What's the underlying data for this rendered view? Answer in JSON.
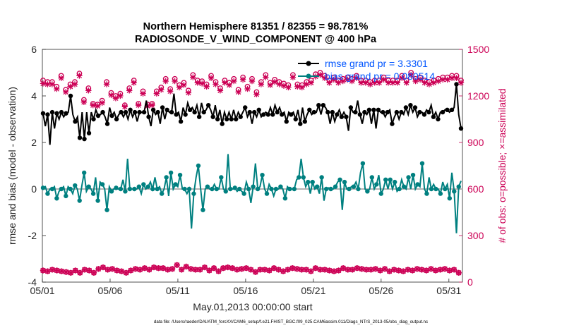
{
  "chart_data": {
    "type": "line",
    "title_line1": "Northern Hemisphere 81351 / 82355 = 98.781%",
    "title_line2": "RADIOSONDE_V_WIND_COMPONENT @ 400 hPa",
    "xlabel": "May.01,2013 00:00:00 start",
    "ylabel_left": "rmse and bias (model - observation)",
    "ylabel_right": "# of obs: o=possible; ×=assimilated",
    "footer": "data file: /Users/raeder/DAI/ATM_forcXX/CAM6_setup/f.e21.FHIST_BGC.f09_025.CAM6assim.011/Diags_NTrS_2013-05/obs_diag_output.nc",
    "x_ticks": [
      "05/01",
      "05/06",
      "05/11",
      "05/16",
      "05/21",
      "05/26",
      "05/31"
    ],
    "xlim": [
      0,
      31
    ],
    "ylim_left": [
      -4,
      6
    ],
    "yticks_left": [
      "-4",
      "-2",
      "0",
      "2",
      "4",
      "6"
    ],
    "ylim_right": [
      0,
      1500
    ],
    "yticks_right": [
      "0",
      "300",
      "600",
      "900",
      "1200",
      "1500"
    ],
    "colors": {
      "rmse": "#000000",
      "bias": "#008080",
      "obs": "#cc0055",
      "zero": "#b3b3b3"
    },
    "series": [
      {
        "name": "rmse",
        "legend": "rmse grand pr = 3.3301",
        "axis": "left",
        "values": [
          3.25,
          2.7,
          3.2,
          1.9,
          3.3,
          2.6,
          3.25,
          3.0,
          3.3,
          3.1,
          3.25,
          3.3,
          4.0,
          3.2,
          2.9,
          3.1,
          2.2,
          3.3,
          2.15,
          3.3,
          2.4,
          3.3,
          3.0,
          3.4,
          3.15,
          3.2,
          3.3,
          3.1,
          2.8,
          3.5,
          3.15,
          3.3,
          3.0,
          3.2,
          3.3,
          3.1,
          3.3,
          3.0,
          3.4,
          3.1,
          3.3,
          2.9,
          3.3,
          3.3,
          3.3,
          3.8,
          3.1,
          2.7,
          3.4,
          3.2,
          3.3,
          2.8,
          3.5,
          3.0,
          3.4,
          3.3,
          3.3,
          4.1,
          3.2,
          3.3,
          2.9,
          3.5,
          3.2,
          3.7,
          3.4,
          3.5,
          3.3,
          3.6,
          3.1,
          3.7,
          3.3,
          3.4,
          3.6,
          3.4,
          3.1,
          3.6,
          3.0,
          3.4,
          2.8,
          3.3,
          3.0,
          3.3,
          3.0,
          3.4,
          3.0,
          3.3,
          3.1,
          3.3,
          3.5,
          3.1,
          3.3,
          2.8,
          3.3,
          3.1,
          3.4,
          3.1,
          3.2,
          3.3,
          3.2,
          3.5,
          3.2,
          3.6,
          3.3,
          3.5,
          3.2,
          3.3,
          2.9,
          3.3,
          3.2,
          3.3,
          3.0,
          3.4,
          2.8,
          3.5,
          2.9,
          3.2,
          3.4,
          3.2,
          3.3,
          3.3,
          3.6,
          3.2,
          3.6,
          3.5,
          3.3,
          2.8,
          3.3,
          2.9,
          3.2,
          3.4,
          3.1,
          3.3,
          3.1,
          2.5,
          3.5,
          3.3,
          3.3,
          3.8,
          3.2,
          2.8,
          3.3,
          3.2,
          3.4,
          2.8,
          3.4,
          2.6,
          3.4,
          3.3,
          3.3,
          3.1,
          3.3,
          3.4,
          2.8,
          3.1,
          3.3,
          3.0,
          3.3,
          3.2,
          3.5,
          3.2,
          3.6,
          3.3,
          3.5,
          3.1,
          3.3,
          3.3,
          3.2,
          3.4,
          3.3,
          3.6,
          3.1,
          3.3,
          3.0,
          3.3,
          3.3,
          3.4,
          3.4,
          3.3,
          3.4,
          3.5,
          4.5,
          3.2,
          2.6
        ]
      },
      {
        "name": "bias",
        "legend": "bias grand pr = 0.080514",
        "axis": "left",
        "values": [
          0.05,
          0.1,
          -0.2,
          0.0,
          0.0,
          0.1,
          -0.4,
          -0.1,
          0.0,
          0.1,
          -0.3,
          0.1,
          0.0,
          -0.2,
          0.15,
          0.0,
          -0.5,
          0.15,
          0.7,
          -0.1,
          0.1,
          0.0,
          -0.2,
          0.5,
          -0.5,
          0.3,
          0.2,
          0.0,
          -0.9,
          0.1,
          -0.1,
          0.0,
          0.05,
          0.0,
          0.0,
          0.4,
          -0.1,
          1.3,
          0.0,
          0.0,
          0.0,
          0.0,
          0.1,
          -0.2,
          0.2,
          0.0,
          0.1,
          0.3,
          0.0,
          0.5,
          0.0,
          0.1,
          -0.2,
          0.0,
          0.5,
          -0.3,
          0.7,
          0.0,
          0.2,
          0.1,
          0.6,
          0.0,
          0.0,
          -0.2,
          0.0,
          -1.7,
          -0.2,
          0.5,
          1.0,
          0.0,
          -0.9,
          0.0,
          0.1,
          0.0,
          0.0,
          0.2,
          0.0,
          0.0,
          0.5,
          0.0,
          -0.1,
          1.5,
          0.0,
          0.0,
          0.05,
          -0.1,
          0.0,
          -0.1,
          -0.2,
          0.3,
          0.0,
          -0.6,
          0.1,
          1.1,
          0.0,
          0.1,
          0.6,
          0.0,
          -0.2,
          0.2,
          0.0,
          -0.3,
          0.0,
          0.0,
          0.1,
          0.0,
          -0.4,
          0.1,
          0.0,
          0.0,
          0.0,
          0.4,
          0.5,
          1.3,
          0.5,
          0.1,
          0.3,
          -0.2,
          0.3,
          0.0,
          0.1,
          -0.2,
          0.5,
          -0.5,
          0.0,
          0.05,
          0.0,
          0.0,
          0.1,
          0.3,
          0.4,
          -0.9,
          0.3,
          0.0,
          0.0,
          0.1,
          0.1,
          0.3,
          0.0,
          0.7,
          1.1,
          0.0,
          -0.1,
          0.0,
          0.5,
          0.0,
          0.2,
          0.6,
          -0.2,
          0.0,
          0.4,
          0.0,
          0.4,
          0.0,
          0.3,
          -0.1,
          0.0,
          0.4,
          0.1,
          0.0,
          0.5,
          0.0,
          0.6,
          0.0,
          0.2,
          0.1,
          1.1,
          0.0,
          -0.2,
          0.5,
          0.0,
          0.2,
          0.0,
          0.0,
          -0.2,
          0.3,
          0.0,
          0.2,
          -0.4,
          0.7,
          -0.1,
          -1.9,
          0.1,
          0.35
        ]
      },
      {
        "name": "obs_possible",
        "axis": "right",
        "values": [
          1300,
          1275,
          1290,
          1150,
          1290,
          1265,
          1260,
          1300,
          1330,
          1230,
          1240,
          1280,
          1275,
          1160,
          1290,
          1200,
          1345,
          1205,
          1175,
          1295,
          1250,
          1275,
          1150,
          1240,
          1145,
          1290,
          1170,
          1145,
          1290,
          1180,
          1220,
          1265,
          1200,
          1225,
          1215,
          1270,
          1140,
          1230,
          1250,
          1165,
          1300,
          1160,
          1150,
          1200,
          1230,
          1235,
          1145,
          1280,
          1150,
          1225,
          1230,
          1165,
          1255,
          1180,
          1310,
          1260,
          1245,
          1175,
          1310,
          1150,
          1270,
          1175,
          1285,
          1200,
          1235,
          1300,
          1335,
          1230,
          1300,
          1240,
          1295,
          1285,
          1275,
          1230,
          1330,
          1265,
          1290,
          1240,
          1250,
          1275,
          1300,
          1280,
          1285,
          1300,
          1310,
          1270,
          1240,
          1285,
          1320,
          1275,
          1260,
          1300,
          1310,
          1270,
          1225,
          1330,
          1290,
          1300,
          1335,
          1280,
          1285,
          1275,
          1305,
          1305,
          1290,
          1315,
          1280,
          1290,
          1270,
          1305,
          1335,
          1300,
          1275,
          1305,
          1270,
          1350,
          1290,
          1290,
          1300,
          1270,
          1340,
          1270,
          1350,
          1300,
          1330,
          1300,
          1300,
          1320,
          1320,
          1270,
          1300,
          1335,
          1310,
          1300,
          1320,
          1300,
          1310,
          1290,
          1330,
          1350,
          1300,
          1330,
          1300,
          1300,
          1290,
          1320,
          1300,
          1290,
          1300,
          1350,
          1320,
          1300,
          1300,
          1320,
          1300,
          1300,
          1300,
          1330,
          1330,
          1300,
          1300,
          1320,
          1350,
          1340,
          1310,
          1300,
          1320,
          1300,
          1300,
          1310,
          1290,
          1330,
          1300,
          1320,
          1310,
          1300,
          1320,
          1310,
          1320,
          1300,
          1330,
          1310,
          1330,
          1290,
          1300
        ],
        "marker": "o"
      },
      {
        "name": "obs_assimilated",
        "axis": "right",
        "values": [
          1280,
          1260,
          1275,
          1140,
          1275,
          1250,
          1245,
          1285,
          1315,
          1215,
          1225,
          1265,
          1260,
          1150,
          1275,
          1185,
          1330,
          1190,
          1160,
          1280,
          1235,
          1260,
          1140,
          1225,
          1135,
          1275,
          1155,
          1135,
          1275,
          1165,
          1205,
          1250,
          1185,
          1210,
          1200,
          1255,
          1130,
          1215,
          1235,
          1150,
          1285,
          1145,
          1140,
          1185,
          1215,
          1220,
          1135,
          1265,
          1140,
          1210,
          1215,
          1150,
          1240,
          1165,
          1295,
          1245,
          1230,
          1160,
          1295,
          1140,
          1255,
          1160,
          1270,
          1185,
          1220,
          1285,
          1320,
          1215,
          1285,
          1225,
          1280,
          1270,
          1260,
          1215,
          1315,
          1250,
          1275,
          1225,
          1235,
          1260,
          1285,
          1265,
          1270,
          1285,
          1295,
          1255,
          1225,
          1270,
          1305,
          1260,
          1245,
          1285,
          1295,
          1255,
          1210,
          1315,
          1275,
          1285,
          1320,
          1265,
          1270,
          1260,
          1290,
          1290,
          1275,
          1300,
          1265,
          1275,
          1255,
          1290,
          1320,
          1285,
          1260,
          1290,
          1255,
          1335,
          1275,
          1275,
          1285,
          1255,
          1325,
          1255,
          1335,
          1285,
          1315,
          1285,
          1285,
          1305,
          1305,
          1255,
          1285,
          1320,
          1295,
          1285,
          1305,
          1285,
          1295,
          1275,
          1315,
          1335,
          1285,
          1315,
          1285,
          1285,
          1275,
          1305,
          1285,
          1275,
          1285,
          1335,
          1305,
          1285,
          1285,
          1305,
          1285,
          1285,
          1285,
          1315,
          1315,
          1285,
          1285,
          1305,
          1335,
          1325,
          1295,
          1285,
          1305,
          1285,
          1285,
          1295,
          1275,
          1315,
          1285,
          1305,
          1295,
          1285,
          1305,
          1295,
          1305,
          1285,
          1315,
          1295,
          1315,
          1275,
          1285
        ],
        "marker": "x"
      },
      {
        "name": "obs_bottom_possible",
        "axis": "right",
        "values": [
          75,
          80,
          70,
          75,
          80,
          70,
          75,
          60,
          70,
          75,
          65,
          80,
          60,
          80,
          75,
          70,
          60,
          55,
          80,
          60,
          75,
          80,
          60,
          80,
          85,
          75,
          95,
          85,
          80,
          75,
          85,
          90,
          75,
          80,
          70,
          90,
          60,
          80,
          75,
          70,
          85,
          95,
          80,
          75,
          90,
          85,
          80,
          85,
          95,
          80,
          90,
          80,
          90,
          100,
          80,
          90,
          85,
          100,
          110,
          100,
          80,
          90,
          100,
          110,
          85,
          100,
          80,
          90,
          80,
          85,
          95,
          80,
          75,
          85,
          90,
          100,
          70,
          85,
          90,
          80,
          95,
          85,
          90,
          80,
          80,
          70,
          85,
          80,
          90,
          75,
          80,
          85,
          65,
          75,
          80,
          85,
          80,
          60,
          75,
          80,
          90,
          60,
          80,
          100,
          70,
          85,
          80,
          75,
          90,
          80,
          85,
          75,
          80,
          70,
          80,
          85,
          70,
          80,
          90,
          75,
          80,
          65,
          80,
          90,
          75,
          80,
          70,
          85,
          75,
          80,
          90,
          70,
          80,
          85,
          80,
          70,
          90,
          80,
          85,
          75,
          80,
          90,
          80,
          70,
          85,
          90,
          75,
          80,
          85,
          80,
          70,
          90,
          80,
          85,
          75,
          80,
          70,
          85,
          80,
          90,
          75,
          80,
          85,
          70,
          80,
          90,
          75,
          80,
          85,
          80,
          75,
          90,
          80,
          70,
          85,
          80,
          75,
          90,
          80,
          85,
          60,
          20
        ],
        "marker": "o"
      }
    ]
  }
}
